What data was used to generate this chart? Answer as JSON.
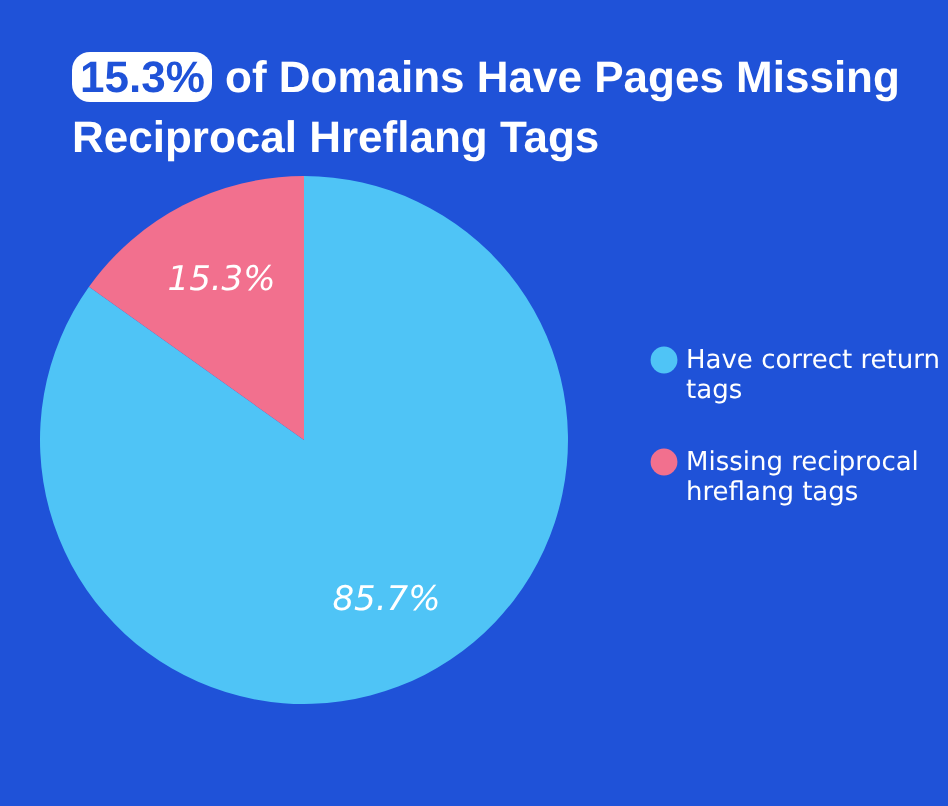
{
  "chart_data": {
    "type": "pie",
    "title": "15.3% of Domains Have Pages Missing Reciprocal Hreflang Tags",
    "categories": [
      "Have correct return tags",
      "Missing reciprocal hreflang tags"
    ],
    "values": [
      85.7,
      15.3
    ],
    "colors": [
      "#4fc4f6",
      "#f2708e"
    ],
    "value_labels": [
      "85.7%",
      "15.3%"
    ],
    "legend": "right"
  }
}
